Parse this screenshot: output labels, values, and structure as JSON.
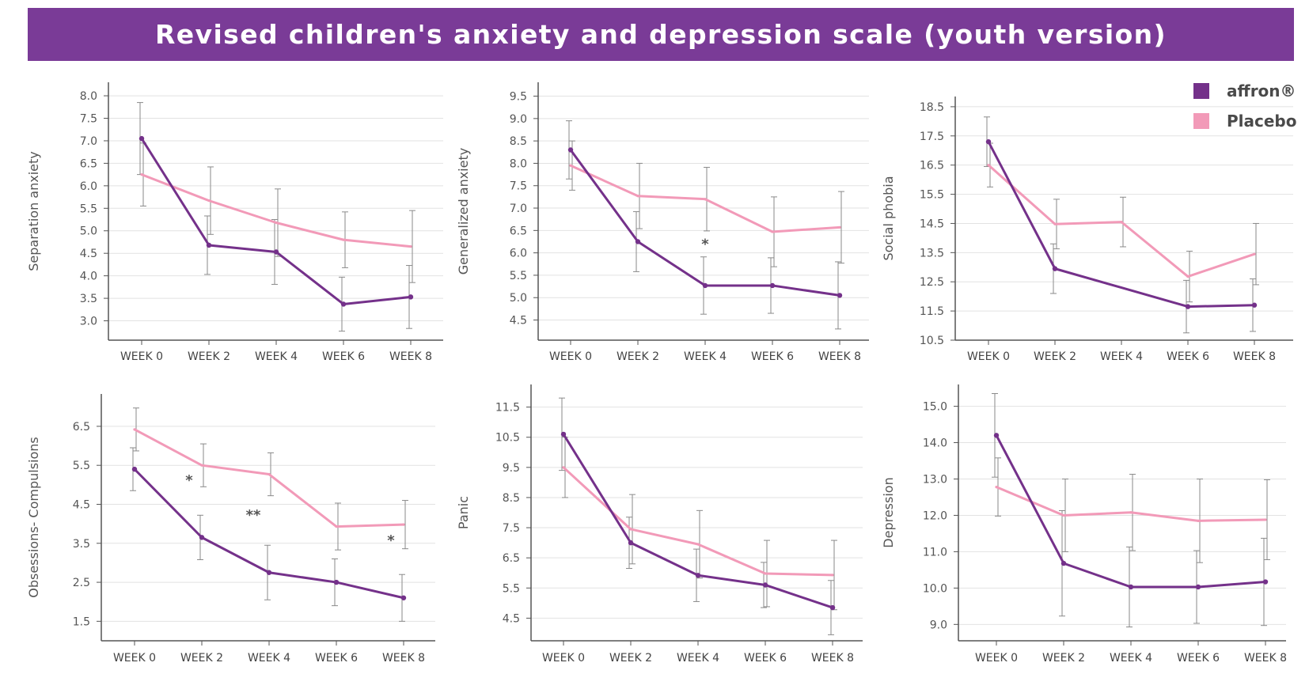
{
  "title": "Revised children's anxiety and depression scale (youth version)",
  "legend": [
    {
      "label": "affron®",
      "color": "#74318a"
    },
    {
      "label": "Placebo",
      "color": "#f29ab8"
    }
  ],
  "colors": {
    "affron": "#74318a",
    "placebo": "#f29ab8",
    "banner": "#7a3b97",
    "axis": "#555555",
    "grid": "#e2e2e2",
    "errorbar": "#8a8a8a"
  },
  "chart_data": [
    {
      "type": "line",
      "ylabel": "Separation anxiety",
      "categories": [
        "WEEK 0",
        "WEEK 2",
        "WEEK 4",
        "WEEK 6",
        "WEEK 8"
      ],
      "yticks": [
        "8.0",
        "7.5",
        "7.0",
        "6.5",
        "6.0",
        "5.5",
        "5.0",
        "4.5",
        "4.0",
        "3.5",
        "3.0"
      ],
      "ylim": [
        2.57,
        8.3
      ],
      "grid": true,
      "series": [
        {
          "name": "affron®",
          "values": [
            7.05,
            4.68,
            4.53,
            3.37,
            3.53
          ],
          "error": [
            0.8,
            0.65,
            0.72,
            0.6,
            0.7
          ]
        },
        {
          "name": "Placebo",
          "values": [
            6.25,
            5.67,
            5.18,
            4.8,
            4.65
          ],
          "error": [
            0.7,
            0.75,
            0.75,
            0.62,
            0.8
          ]
        }
      ],
      "annotations": []
    },
    {
      "type": "line",
      "ylabel": "Generalized anxiety",
      "categories": [
        "WEEK 0",
        "WEEK 2",
        "WEEK 4",
        "WEEK 6",
        "WEEK 8"
      ],
      "yticks": [
        "9.5",
        "9.0",
        "8.5",
        "8.0",
        "7.5",
        "7.0",
        "6.5",
        "6.0",
        "5.5",
        "5.0",
        "4.5"
      ],
      "ylim": [
        4.05,
        9.81
      ],
      "grid": true,
      "series": [
        {
          "name": "affron®",
          "values": [
            8.3,
            6.25,
            5.27,
            5.27,
            5.05
          ],
          "error": [
            0.65,
            0.67,
            0.64,
            0.62,
            0.75
          ]
        },
        {
          "name": "Placebo",
          "values": [
            7.95,
            7.27,
            7.2,
            6.47,
            6.57
          ],
          "error": [
            0.55,
            0.73,
            0.71,
            0.78,
            0.8
          ]
        }
      ],
      "annotations": [
        {
          "text": "*",
          "category": "WEEK 4"
        }
      ]
    },
    {
      "type": "line",
      "ylabel": "Social phobia",
      "categories": [
        "WEEK 0",
        "WEEK 2",
        "WEEK 4",
        "WEEK 6",
        "WEEK 8"
      ],
      "yticks": [
        "18.5",
        "17.5",
        "16.5",
        "15.5",
        "14.5",
        "13.5",
        "12.5",
        "11.5",
        "10.5"
      ],
      "ylim": [
        10.5,
        18.85
      ],
      "grid": true,
      "series": [
        {
          "name": "affron®",
          "values": [
            17.3,
            12.95,
            null,
            11.65,
            11.7
          ],
          "error": [
            0.85,
            0.85,
            0,
            0.9,
            0.9
          ]
        },
        {
          "name": "Placebo",
          "values": [
            16.5,
            14.48,
            14.55,
            12.68,
            13.45
          ],
          "error": [
            0.75,
            0.85,
            0.85,
            0.87,
            1.05
          ]
        }
      ],
      "annotations": []
    },
    {
      "type": "line",
      "ylabel": "Obsessions- Compulsions",
      "categories": [
        "WEEK 0",
        "WEEK 2",
        "WEEK 4",
        "WEEK 6",
        "WEEK 8"
      ],
      "yticks": [
        "6.5",
        "5.5",
        "4.5",
        "3.5",
        "2.5",
        "1.5"
      ],
      "ylim": [
        1.0,
        7.33
      ],
      "grid": true,
      "series": [
        {
          "name": "affron®",
          "values": [
            5.4,
            3.65,
            2.75,
            2.5,
            2.1
          ],
          "error": [
            0.55,
            0.57,
            0.7,
            0.6,
            0.6
          ]
        },
        {
          "name": "Placebo",
          "values": [
            6.42,
            5.5,
            5.27,
            3.93,
            3.98
          ],
          "error": [
            0.55,
            0.55,
            0.55,
            0.6,
            0.62
          ]
        }
      ],
      "annotations": [
        {
          "text": "*",
          "category": "WEEK 2"
        },
        {
          "text": "**",
          "category": "WEEK 4"
        },
        {
          "text": "*",
          "category": "WEEK 8"
        }
      ]
    },
    {
      "type": "line",
      "ylabel": "Panic",
      "categories": [
        "WEEK 0",
        "WEEK 2",
        "WEEK 4",
        "WEEK 6",
        "WEEK 8"
      ],
      "yticks": [
        "11.5",
        "10.5",
        "9.5",
        "8.5",
        "7.5",
        "6.5",
        "5.5",
        "4.5"
      ],
      "ylim": [
        3.75,
        12.25
      ],
      "grid": true,
      "series": [
        {
          "name": "affron®",
          "values": [
            10.6,
            7.0,
            5.92,
            5.6,
            4.85
          ],
          "error": [
            1.2,
            0.85,
            0.87,
            0.75,
            0.9
          ]
        },
        {
          "name": "Placebo",
          "values": [
            9.5,
            7.45,
            6.95,
            5.98,
            5.93
          ],
          "error": [
            1.0,
            1.15,
            1.12,
            1.1,
            1.15
          ]
        }
      ],
      "annotations": []
    },
    {
      "type": "line",
      "ylabel": "Depression",
      "categories": [
        "WEEK 0",
        "WEEK 2",
        "WEEK 4",
        "WEEK 6",
        "WEEK 8"
      ],
      "yticks": [
        "15.0",
        "14.0",
        "13.0",
        "12.0",
        "11.0",
        "10.0",
        "9.0"
      ],
      "ylim": [
        8.55,
        15.6
      ],
      "grid": true,
      "series": [
        {
          "name": "affron®",
          "values": [
            14.2,
            10.68,
            10.03,
            10.03,
            10.17
          ],
          "error": [
            1.15,
            1.45,
            1.1,
            1.0,
            1.2
          ]
        },
        {
          "name": "Placebo",
          "values": [
            12.78,
            12.0,
            12.08,
            11.85,
            11.88
          ],
          "error": [
            0.8,
            1.0,
            1.05,
            1.15,
            1.1
          ]
        }
      ],
      "annotations": []
    }
  ]
}
